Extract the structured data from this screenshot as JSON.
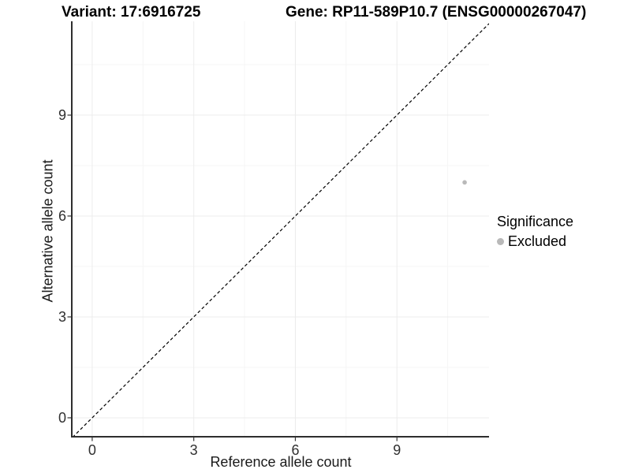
{
  "chart_data": {
    "type": "scatter",
    "title_left": "Variant: 17:6916725",
    "title_right": "Gene: RP11-589P10.7 (ENSG00000267047)",
    "xlabel": "Reference allele count",
    "ylabel": "Alternative allele count",
    "xlim": [
      -0.58,
      11.72
    ],
    "ylim": [
      -0.54,
      11.79
    ],
    "x_ticks": [
      "0",
      "3",
      "6",
      "9"
    ],
    "x_tick_values": [
      0,
      3,
      6,
      9
    ],
    "y_ticks": [
      "0",
      "3",
      "6",
      "9"
    ],
    "y_tick_values": [
      0,
      3,
      6,
      9
    ],
    "minor_x": [
      1.5,
      4.5,
      7.5,
      10.5
    ],
    "minor_y": [
      1.5,
      4.5,
      7.5,
      10.5
    ],
    "grid": "major+minor",
    "points": [
      {
        "x": 11,
        "y": 7,
        "series": "Excluded"
      }
    ],
    "reference_line": {
      "style": "dashed",
      "slope": 1,
      "intercept": 0,
      "description": "identity line y = x"
    },
    "legend": {
      "title": "Significance",
      "position": "right",
      "items": [
        {
          "label": "Excluded",
          "color": "#b9b9b9"
        }
      ]
    },
    "colors": {
      "point": "#b9b9b9",
      "axis_line": "#2e2e2e",
      "tick_mark": "#333333",
      "grid_major": "#ececec",
      "grid_minor": "#f5f5f5",
      "dashed_line": "#000000",
      "background": "#ffffff"
    }
  }
}
